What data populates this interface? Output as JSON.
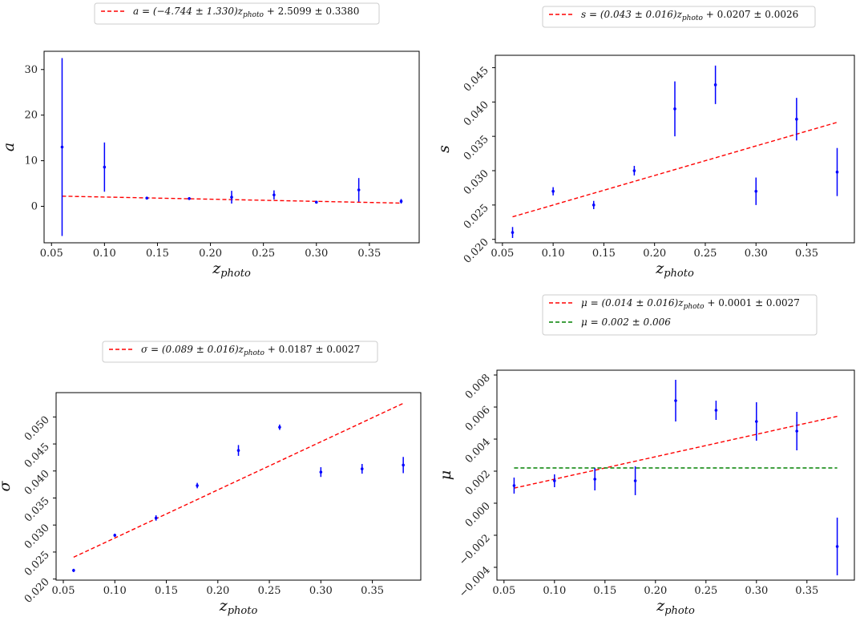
{
  "chart_data": [
    {
      "id": "a",
      "type": "scatter",
      "xlabel_main": "z",
      "xlabel_sub": "photo",
      "ylabel": "a",
      "xlim": [
        0.043,
        0.397
      ],
      "ylim": [
        -8,
        34
      ],
      "xticks": [
        "0.05",
        "0.10",
        "0.15",
        "0.20",
        "0.25",
        "0.30",
        "0.35"
      ],
      "yticks": [
        "0",
        "10",
        "20",
        "30"
      ],
      "x": [
        0.06,
        0.1,
        0.14,
        0.18,
        0.22,
        0.26,
        0.3,
        0.34,
        0.38
      ],
      "y": [
        13.0,
        8.6,
        1.8,
        1.7,
        2.0,
        2.5,
        0.9,
        3.6,
        1.1
      ],
      "yerr": [
        19.5,
        5.4,
        0.3,
        0.3,
        1.4,
        1.0,
        0.3,
        2.6,
        0.5
      ],
      "series_color": "#0000ff",
      "fits": [
        {
          "legend": "a = (−4.744 ± 1.330)z",
          "legend_sub": "photo",
          "legend_tail": " + 2.5099 ± 0.3380",
          "color": "#ff0000",
          "slope": -4.744,
          "intercept": 2.5099
        }
      ],
      "legend_position": "above"
    },
    {
      "id": "s",
      "type": "scatter",
      "xlabel_main": "z",
      "xlabel_sub": "photo",
      "ylabel": "s",
      "xlim": [
        0.043,
        0.397
      ],
      "ylim": [
        0.0195,
        0.0468
      ],
      "xticks": [
        "0.05",
        "0.10",
        "0.15",
        "0.20",
        "0.25",
        "0.30",
        "0.35"
      ],
      "yticks": [
        "0.020",
        "0.025",
        "0.030",
        "0.035",
        "0.040",
        "0.045"
      ],
      "x": [
        0.06,
        0.1,
        0.14,
        0.18,
        0.22,
        0.26,
        0.3,
        0.34,
        0.38
      ],
      "y": [
        0.021,
        0.027,
        0.025,
        0.03,
        0.039,
        0.0425,
        0.027,
        0.0375,
        0.0298
      ],
      "yerr": [
        0.0008,
        0.0006,
        0.0006,
        0.0007,
        0.004,
        0.0028,
        0.002,
        0.0031,
        0.0035
      ],
      "series_color": "#0000ff",
      "fits": [
        {
          "legend": "s = (0.043 ± 0.016)z",
          "legend_sub": "photo",
          "legend_tail": " + 0.0207 ± 0.0026",
          "color": "#ff0000",
          "slope": 0.043,
          "intercept": 0.0207
        }
      ],
      "legend_position": "above"
    },
    {
      "id": "sigma",
      "type": "scatter",
      "xlabel_main": "z",
      "xlabel_sub": "photo",
      "ylabel": "σ",
      "xlim": [
        0.043,
        0.397
      ],
      "ylim": [
        0.0198,
        0.0545
      ],
      "xticks": [
        "0.05",
        "0.10",
        "0.15",
        "0.20",
        "0.25",
        "0.30",
        "0.35"
      ],
      "yticks": [
        "0.020",
        "0.025",
        "0.030",
        "0.035",
        "0.040",
        "0.045",
        "0.050"
      ],
      "x": [
        0.06,
        0.1,
        0.14,
        0.18,
        0.22,
        0.26,
        0.3,
        0.34,
        0.38
      ],
      "y": [
        0.0216,
        0.0281,
        0.0313,
        0.0373,
        0.0438,
        0.0481,
        0.0398,
        0.0404,
        0.0411
      ],
      "yerr": [
        0.0003,
        0.0003,
        0.0005,
        0.0005,
        0.001,
        0.0005,
        0.0009,
        0.0009,
        0.0015
      ],
      "series_color": "#0000ff",
      "fits": [
        {
          "legend": "σ = (0.089 ± 0.016)z",
          "legend_sub": "photo",
          "legend_tail": " + 0.0187 ± 0.0027",
          "color": "#ff0000",
          "slope": 0.089,
          "intercept": 0.0187
        }
      ],
      "legend_position": "above"
    },
    {
      "id": "mu",
      "type": "scatter",
      "xlabel_main": "z",
      "xlabel_sub": "photo",
      "ylabel": "μ",
      "xlim": [
        0.043,
        0.397
      ],
      "ylim": [
        -0.0048,
        0.0083
      ],
      "xticks": [
        "0.05",
        "0.10",
        "0.15",
        "0.20",
        "0.25",
        "0.30",
        "0.35"
      ],
      "yticks": [
        "−0.004",
        "−0.002",
        "0.000",
        "0.002",
        "0.004",
        "0.006",
        "0.008"
      ],
      "x": [
        0.06,
        0.1,
        0.14,
        0.18,
        0.22,
        0.26,
        0.3,
        0.34,
        0.38
      ],
      "y": [
        0.0011,
        0.0014,
        0.0015,
        0.0014,
        0.0064,
        0.0058,
        0.0051,
        0.0045,
        -0.0027
      ],
      "yerr": [
        0.0005,
        0.0004,
        0.0007,
        0.0009,
        0.0013,
        0.0006,
        0.0012,
        0.0012,
        0.0018
      ],
      "series_color": "#0000ff",
      "fits": [
        {
          "legend": "μ = (0.014 ± 0.016)z",
          "legend_sub": "photo",
          "legend_tail": " + 0.0001 ± 0.0027",
          "color": "#ff0000",
          "slope": 0.014,
          "intercept": 0.0001
        },
        {
          "legend": "μ = 0.002 ± 0.006",
          "legend_sub": "",
          "legend_tail": "",
          "color": "#008000",
          "slope": 0,
          "intercept": 0.0022
        }
      ],
      "legend_position": "above"
    }
  ]
}
